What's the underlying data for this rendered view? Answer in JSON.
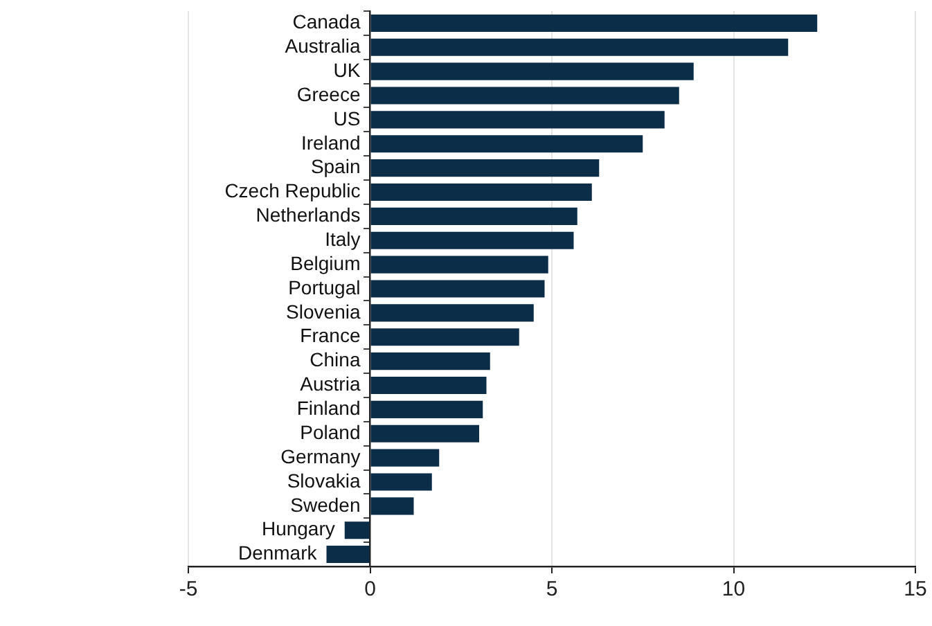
{
  "chart_data": {
    "type": "bar",
    "orientation": "horizontal",
    "categories": [
      "Canada",
      "Australia",
      "UK",
      "Greece",
      "US",
      "Ireland",
      "Spain",
      "Czech Republic",
      "Netherlands",
      "Italy",
      "Belgium",
      "Portugal",
      "Slovenia",
      "France",
      "China",
      "Austria",
      "Finland",
      "Poland",
      "Germany",
      "Slovakia",
      "Sweden",
      "Hungary",
      "Denmark"
    ],
    "values": [
      12.3,
      11.5,
      8.9,
      8.5,
      8.1,
      7.5,
      6.3,
      6.1,
      5.7,
      5.6,
      4.9,
      4.8,
      4.5,
      4.1,
      3.3,
      3.2,
      3.1,
      3.0,
      1.9,
      1.7,
      1.2,
      -0.7,
      -1.2
    ],
    "color": "#0c2d48",
    "xlim": [
      -5,
      15
    ],
    "xticks": [
      -5,
      0,
      5,
      10,
      15
    ],
    "grid": "x",
    "legend": false
  }
}
